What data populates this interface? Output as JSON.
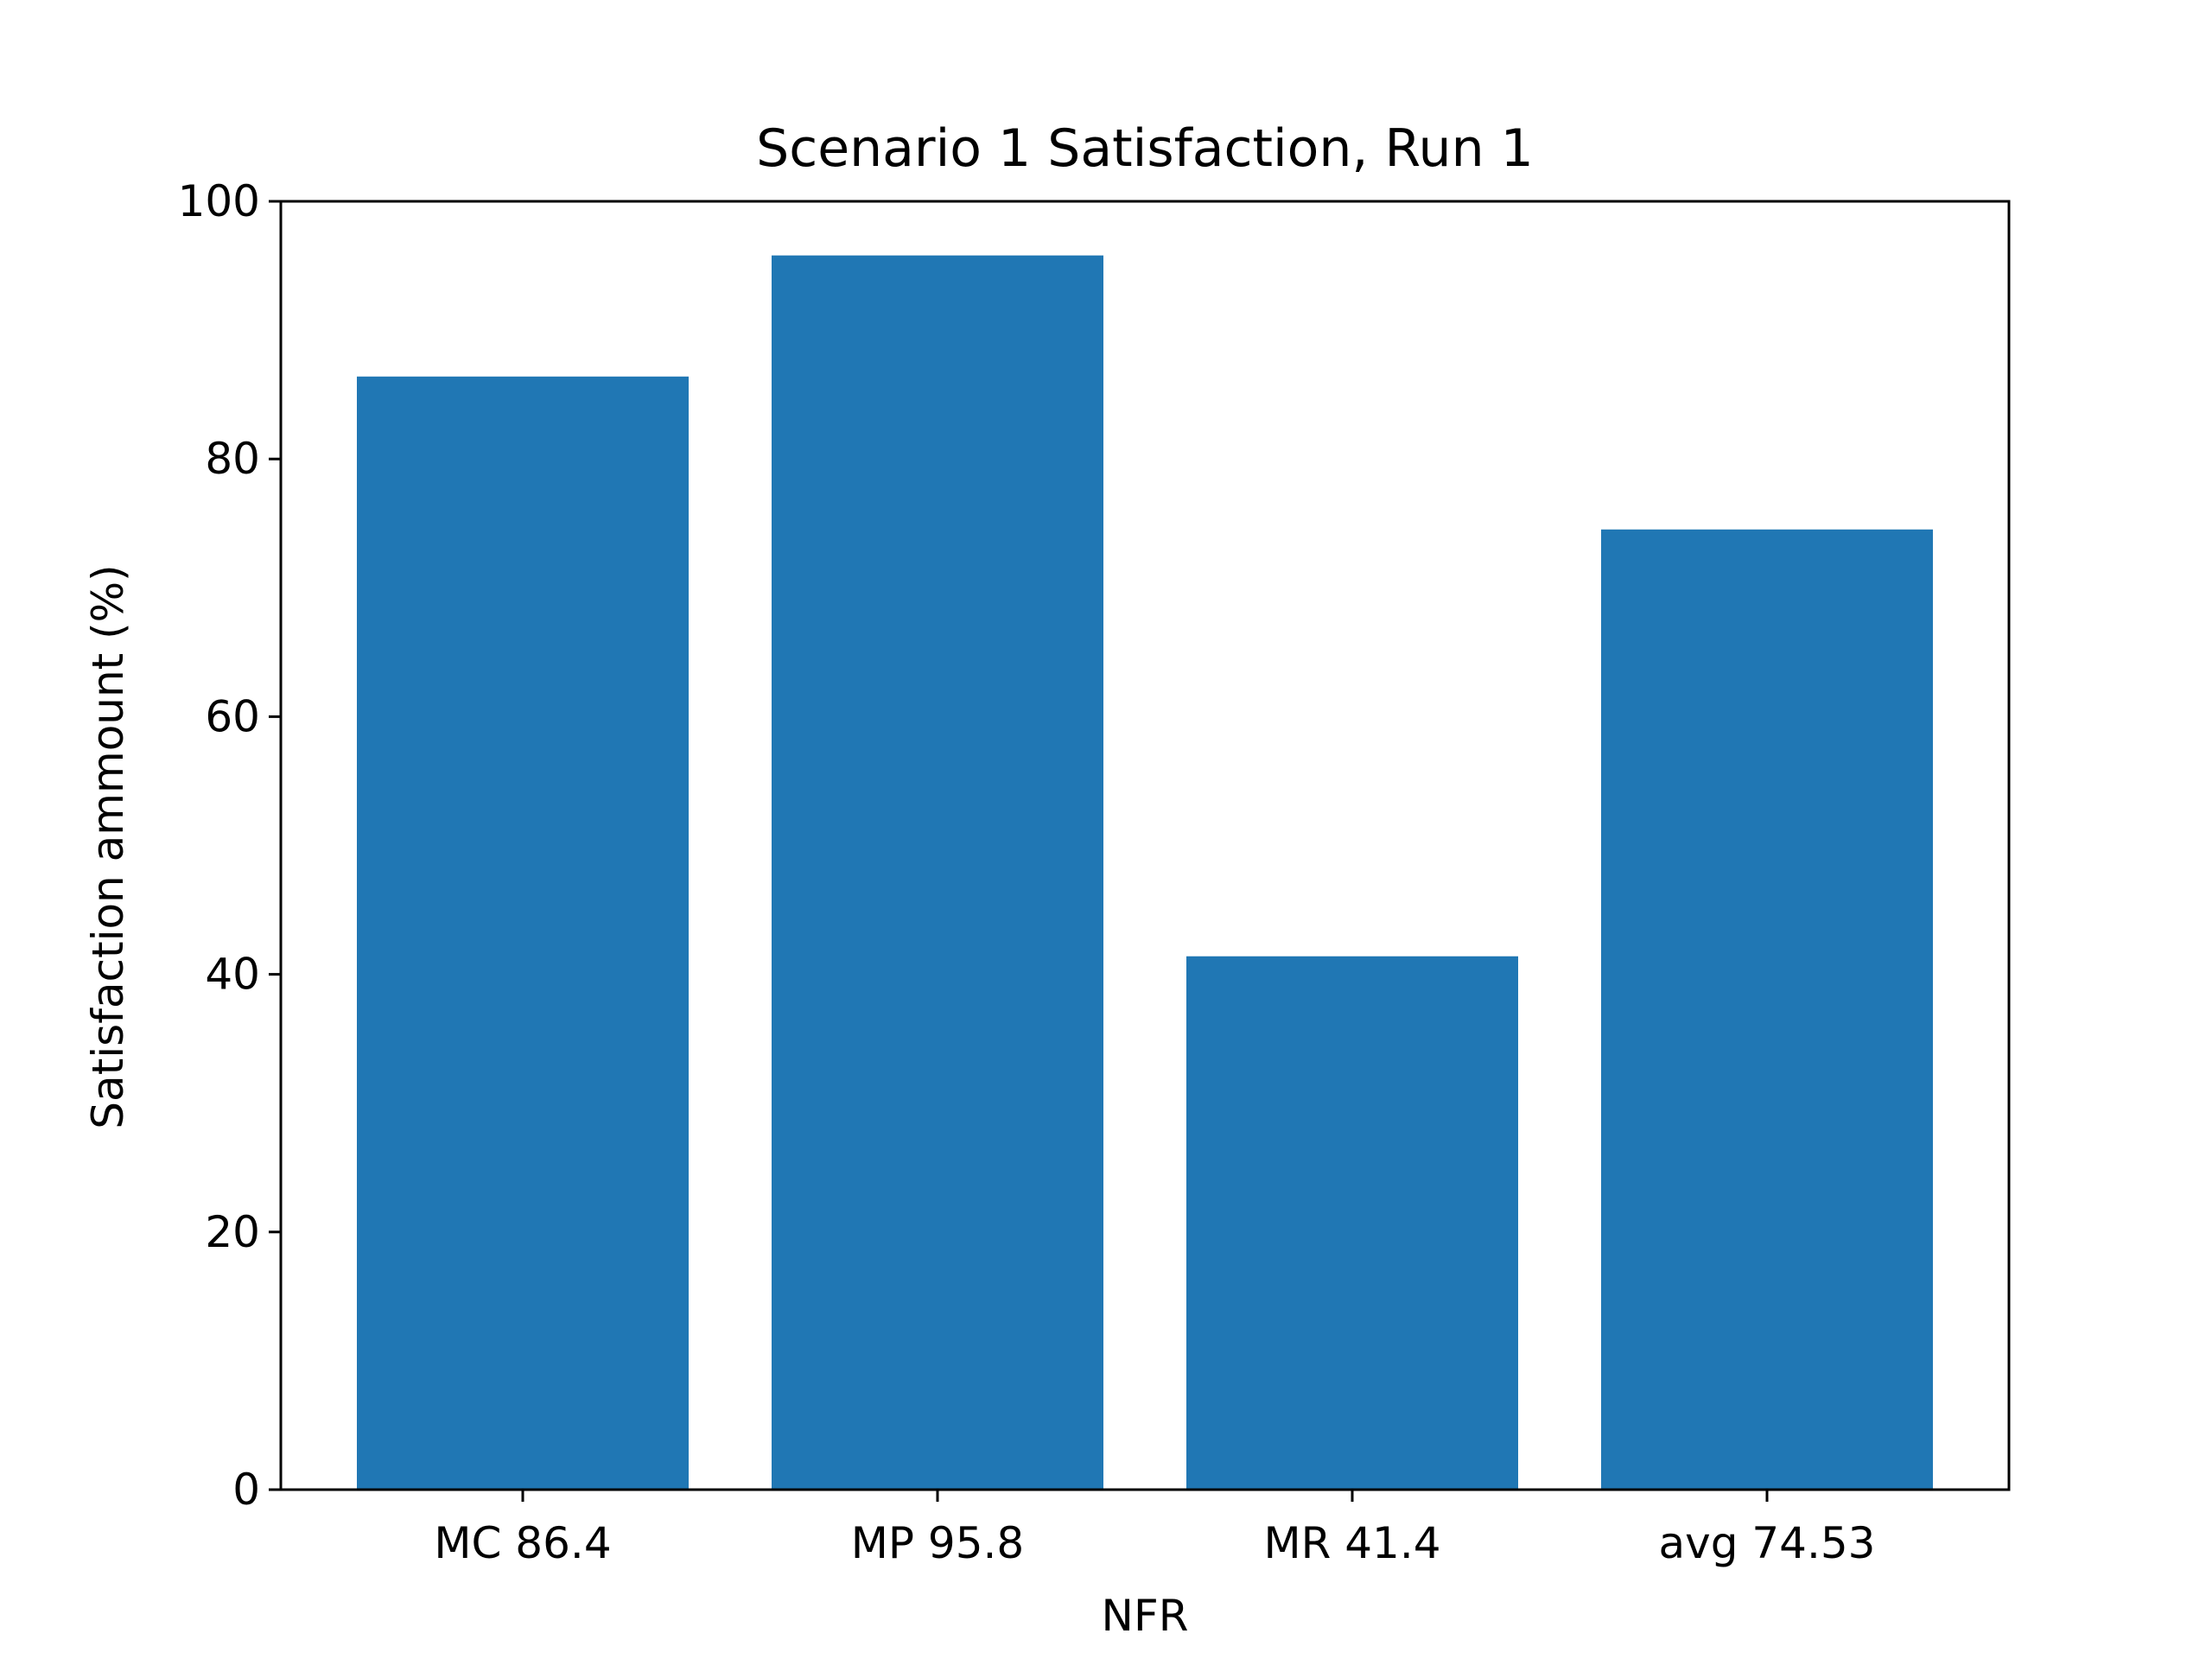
{
  "chart_data": {
    "type": "bar",
    "title": "Scenario 1 Satisfaction, Run 1",
    "xlabel": "NFR",
    "ylabel": "Satisfaction ammount (%)",
    "categories": [
      "MC 86.4",
      "MP 95.8",
      "MR 41.4",
      "avg 74.53"
    ],
    "values": [
      86.4,
      95.8,
      41.4,
      74.53
    ],
    "ylim": [
      0,
      100
    ],
    "yticks": [
      0,
      20,
      40,
      60,
      80,
      100
    ],
    "grid": false,
    "legend": "none",
    "bar_color": "#2077b4"
  }
}
